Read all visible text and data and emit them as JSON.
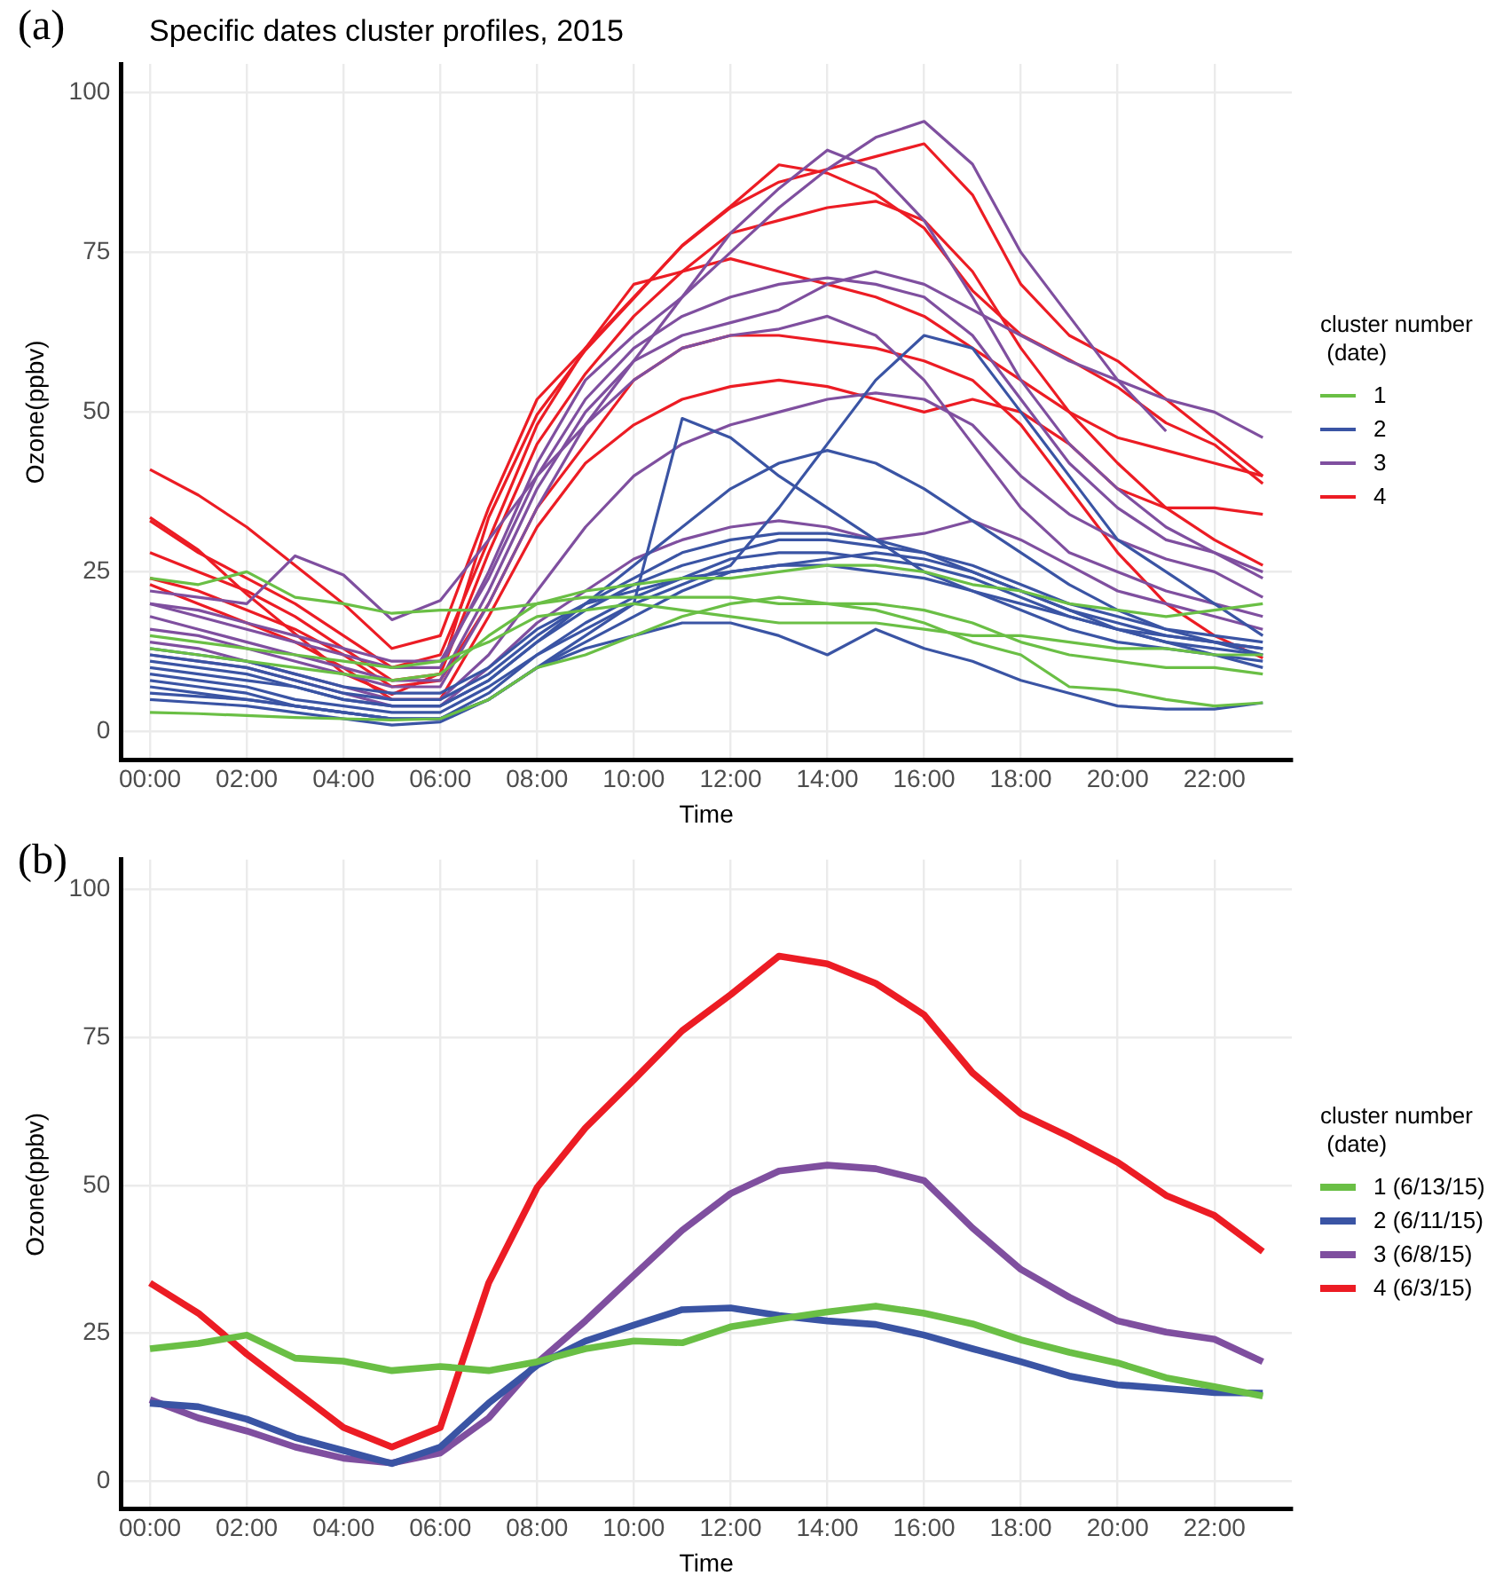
{
  "chart_data": [
    {
      "type": "line",
      "title": "Specific dates cluster profiles, 2015",
      "xlabel": "Time",
      "ylabel": "Ozone(ppbv)",
      "legend_title": "cluster number\n (date)",
      "annotations": [
        "(a)"
      ],
      "legend": "right",
      "grid": true,
      "x": [
        0,
        1,
        2,
        3,
        4,
        5,
        6,
        7,
        8,
        9,
        10,
        11,
        12,
        13,
        14,
        15,
        16,
        17,
        18,
        19,
        20,
        21,
        22,
        23
      ],
      "xlim": [
        -0.6,
        23.6
      ],
      "xticks": [
        {
          "value": 0,
          "label": "00:00"
        },
        {
          "value": 2,
          "label": "02:00"
        },
        {
          "value": 4,
          "label": "04:00"
        },
        {
          "value": 6,
          "label": "06:00"
        },
        {
          "value": 8,
          "label": "08:00"
        },
        {
          "value": 10,
          "label": "10:00"
        },
        {
          "value": 12,
          "label": "12:00"
        },
        {
          "value": 14,
          "label": "14:00"
        },
        {
          "value": 16,
          "label": "16:00"
        },
        {
          "value": 18,
          "label": "18:00"
        },
        {
          "value": 20,
          "label": "20:00"
        },
        {
          "value": 22,
          "label": "22:00"
        }
      ],
      "ylim": [
        -4.5,
        104.5
      ],
      "yticks": [
        0,
        25,
        50,
        75,
        100
      ],
      "series": [
        {
          "name": "1",
          "color": "#6abf45",
          "values": [
            3,
            2.8,
            2.5,
            2.2,
            2,
            1.8,
            2,
            5,
            10,
            12,
            15,
            18,
            20,
            21,
            20,
            19,
            17,
            14,
            12,
            7,
            6.5,
            5,
            4,
            4.5
          ]
        },
        {
          "color": "#6abf45",
          "values": [
            24,
            23,
            25,
            21,
            20,
            18.5,
            19,
            19,
            20,
            22,
            23,
            24,
            24,
            25,
            26,
            26,
            25,
            23,
            22,
            20,
            19,
            18,
            19,
            20
          ]
        },
        {
          "color": "#6abf45",
          "values": [
            15,
            14,
            13,
            12,
            11,
            10,
            11,
            14,
            18,
            19,
            20,
            19,
            18,
            17,
            17,
            17,
            16,
            15,
            15,
            14,
            13,
            13,
            12,
            12
          ]
        },
        {
          "color": "#6abf45",
          "values": [
            13,
            12,
            11,
            10,
            9,
            8,
            9,
            15,
            20,
            21,
            21,
            21,
            21,
            20,
            20,
            20,
            19,
            17,
            14,
            12,
            11,
            10,
            10,
            9
          ]
        },
        {
          "name": "2",
          "color": "#3a54a4",
          "values": [
            5,
            4.5,
            4,
            3,
            2,
            1,
            1.5,
            5,
            10,
            14,
            18,
            22,
            25,
            26,
            27,
            28,
            27,
            25,
            22,
            19,
            16,
            14,
            12,
            10
          ]
        },
        {
          "color": "#3a54a4",
          "values": [
            8,
            7,
            6,
            4,
            3,
            2,
            2,
            6,
            12,
            17,
            21,
            24,
            27,
            28,
            28,
            27,
            26,
            24,
            21,
            18,
            16,
            14,
            13,
            12
          ]
        },
        {
          "color": "#3a54a4",
          "values": [
            10,
            9,
            8,
            7,
            5,
            4,
            4,
            8,
            14,
            19,
            23,
            26,
            28,
            30,
            30,
            29,
            28,
            25,
            22,
            19,
            17,
            15,
            14,
            13
          ]
        },
        {
          "color": "#3a54a4",
          "values": [
            12,
            11,
            10,
            8,
            6,
            5,
            5,
            9,
            15,
            20,
            24,
            28,
            30,
            31,
            31,
            30,
            28,
            26,
            23,
            20,
            18,
            16,
            15,
            14
          ]
        },
        {
          "color": "#3a54a4",
          "values": [
            6,
            5.5,
            5,
            4,
            3,
            2,
            2,
            5,
            10,
            15,
            20,
            49,
            46,
            40,
            35,
            30,
            25,
            22,
            19,
            16,
            14,
            13,
            12,
            11
          ]
        },
        {
          "color": "#3a54a4",
          "values": [
            9,
            8,
            7,
            5,
            4,
            3,
            3,
            7,
            12,
            16,
            20,
            23,
            26,
            35,
            45,
            55,
            62,
            60,
            50,
            40,
            30,
            25,
            20,
            15
          ]
        },
        {
          "color": "#3a54a4",
          "values": [
            11,
            10,
            9,
            7,
            5,
            4,
            4,
            8,
            14,
            20,
            26,
            32,
            38,
            42,
            44,
            42,
            38,
            33,
            28,
            23,
            19,
            16,
            14,
            12
          ]
        },
        {
          "color": "#3a54a4",
          "values": [
            7,
            6,
            5,
            4,
            3,
            2,
            2,
            5,
            10,
            13,
            15,
            17,
            17,
            15,
            12,
            16,
            13,
            11,
            8,
            6,
            4,
            3.5,
            3.5,
            4.5
          ]
        },
        {
          "color": "#3a54a4",
          "values": [
            13,
            12,
            11,
            9,
            7,
            6,
            6,
            10,
            16,
            20,
            22,
            24,
            25,
            26,
            26,
            25,
            24,
            22,
            20,
            18,
            16,
            15,
            14,
            13
          ]
        },
        {
          "name": "3",
          "color": "#7f4f9f",
          "values": [
            22,
            21,
            20,
            27.5,
            24.5,
            17.5,
            20.5,
            30,
            40,
            48,
            55,
            60,
            62,
            63,
            65,
            62,
            55,
            45,
            35,
            28,
            25,
            22,
            20,
            18
          ]
        },
        {
          "color": "#7f4f9f",
          "values": [
            20,
            18,
            16,
            14,
            12,
            10,
            10,
            25,
            42,
            55,
            62,
            68,
            75,
            82,
            88,
            93,
            95.5,
            88.8,
            75,
            65,
            55,
            47,
            null,
            null
          ]
        },
        {
          "color": "#7f4f9f",
          "values": [
            18,
            16,
            14,
            12,
            10,
            8,
            8,
            22,
            38,
            50,
            58,
            62,
            64,
            66,
            70,
            72,
            70,
            66,
            62,
            58,
            55,
            52,
            50,
            46
          ]
        },
        {
          "color": "#7f4f9f",
          "values": [
            16,
            15,
            13,
            11,
            9,
            7,
            7,
            20,
            35,
            48,
            58,
            68,
            78,
            85,
            91,
            88,
            80,
            68,
            55,
            45,
            38,
            32,
            28,
            25
          ]
        },
        {
          "color": "#7f4f9f",
          "values": [
            14,
            13,
            11,
            9,
            7,
            5,
            5,
            12,
            22,
            32,
            40,
            45,
            48,
            50,
            52,
            53,
            52,
            48,
            40,
            34,
            30,
            27,
            25,
            21
          ]
        },
        {
          "color": "#7f4f9f",
          "values": [
            12,
            11,
            10,
            8,
            6,
            4,
            4,
            10,
            17,
            22,
            27,
            30,
            32,
            33,
            32,
            30,
            31,
            33,
            30,
            26,
            22,
            20,
            18,
            16
          ]
        },
        {
          "color": "#7f4f9f",
          "values": [
            20,
            19,
            17,
            15,
            13,
            11,
            11,
            24,
            40,
            52,
            60,
            65,
            68,
            70,
            71,
            70,
            68,
            62,
            52,
            42,
            35,
            30,
            28,
            24
          ]
        },
        {
          "name": "4",
          "color": "#ec1c24",
          "values": [
            41,
            37,
            32,
            26,
            20,
            13,
            15,
            35,
            52,
            60,
            70,
            72,
            74,
            72,
            70,
            68,
            65,
            60,
            55,
            50,
            46,
            44,
            42,
            40
          ]
        },
        {
          "color": "#ec1c24",
          "values": [
            33,
            28,
            24,
            20,
            15,
            10,
            12,
            30,
            48,
            60,
            68,
            76,
            82,
            86,
            88,
            90,
            92,
            84,
            70,
            62,
            58,
            52,
            46,
            40
          ]
        },
        {
          "color": "#ec1c24",
          "values": [
            33.5,
            28.4,
            21.5,
            15.3,
            9.1,
            5.8,
            9.1,
            33.5,
            49.6,
            59.7,
            67.8,
            76.1,
            82.2,
            88.7,
            87.4,
            84.1,
            78.8,
            69,
            62.1,
            58.2,
            53.9,
            48.3,
            44.9,
            38.8
          ]
        },
        {
          "color": "#ec1c24",
          "values": [
            28,
            25,
            22,
            18,
            13,
            8,
            9,
            28,
            45,
            56,
            65,
            72,
            78,
            80,
            82,
            83,
            80,
            72,
            60,
            50,
            42,
            35,
            30,
            26
          ]
        },
        {
          "color": "#ec1c24",
          "values": [
            24,
            22,
            19,
            16,
            12,
            7,
            8,
            20,
            35,
            45,
            55,
            60,
            62,
            62,
            61,
            60,
            58,
            55,
            48,
            38,
            28,
            20,
            15,
            11.5
          ]
        },
        {
          "color": "#ec1c24",
          "values": [
            23,
            20,
            17,
            14,
            10,
            5,
            5,
            18,
            32,
            42,
            48,
            52,
            54,
            55,
            54,
            52,
            50,
            52,
            50,
            45,
            38,
            35,
            35,
            34
          ]
        }
      ]
    },
    {
      "type": "line",
      "xlabel": "Time",
      "ylabel": "Ozone(ppbv)",
      "legend_title": "cluster number\n (date)",
      "annotations": [
        "(b)"
      ],
      "legend": "right",
      "grid": true,
      "x": [
        0,
        1,
        2,
        3,
        4,
        5,
        6,
        7,
        8,
        9,
        10,
        11,
        12,
        13,
        14,
        15,
        16,
        17,
        18,
        19,
        20,
        21,
        22,
        23
      ],
      "xlim": [
        -0.6,
        23.6
      ],
      "xticks": [
        {
          "value": 0,
          "label": "00:00"
        },
        {
          "value": 2,
          "label": "02:00"
        },
        {
          "value": 4,
          "label": "04:00"
        },
        {
          "value": 6,
          "label": "06:00"
        },
        {
          "value": 8,
          "label": "08:00"
        },
        {
          "value": 10,
          "label": "10:00"
        },
        {
          "value": 12,
          "label": "12:00"
        },
        {
          "value": 14,
          "label": "14:00"
        },
        {
          "value": 16,
          "label": "16:00"
        },
        {
          "value": 18,
          "label": "18:00"
        },
        {
          "value": 20,
          "label": "20:00"
        },
        {
          "value": 22,
          "label": "22:00"
        }
      ],
      "ylim": [
        -4.7,
        105
      ],
      "yticks": [
        0,
        25,
        50,
        75,
        100
      ],
      "series": [
        {
          "name": "1 (6/13/15)",
          "color": "#6abf45",
          "values": [
            22.4,
            23.3,
            24.7,
            20.8,
            20.3,
            18.7,
            19.4,
            18.7,
            20.2,
            22.4,
            23.7,
            23.4,
            26.1,
            27.4,
            28.6,
            29.6,
            28.4,
            26.6,
            23.9,
            21.8,
            20,
            17.5,
            16,
            14.4
          ]
        },
        {
          "name": "2 (6/11/15)",
          "color": "#3a54a4",
          "values": [
            13.2,
            12.6,
            10.5,
            7.4,
            5.2,
            3,
            5.8,
            13.2,
            19.6,
            23.7,
            26.4,
            29,
            29.3,
            28,
            27.1,
            26.5,
            24.7,
            22.4,
            20.2,
            17.8,
            16.3,
            15.7,
            15,
            14.9
          ]
        },
        {
          "name": "3 (6/8/15)",
          "color": "#7f4f9f",
          "values": [
            13.8,
            10.7,
            8.5,
            5.8,
            3.9,
            3.1,
            4.8,
            10.7,
            20,
            27.1,
            34.8,
            42.4,
            48.6,
            52.4,
            53.4,
            52.8,
            50.8,
            42.8,
            35.8,
            31.1,
            27.1,
            25.2,
            24,
            20.2
          ]
        },
        {
          "name": "4 (6/3/15)",
          "color": "#ec1c24",
          "values": [
            33.5,
            28.4,
            21.5,
            15.3,
            9.1,
            5.8,
            9.1,
            33.5,
            49.6,
            59.7,
            67.8,
            76.1,
            82.2,
            88.7,
            87.4,
            84.1,
            78.8,
            69,
            62.1,
            58.2,
            53.9,
            48.3,
            44.9,
            38.8
          ]
        }
      ]
    }
  ]
}
